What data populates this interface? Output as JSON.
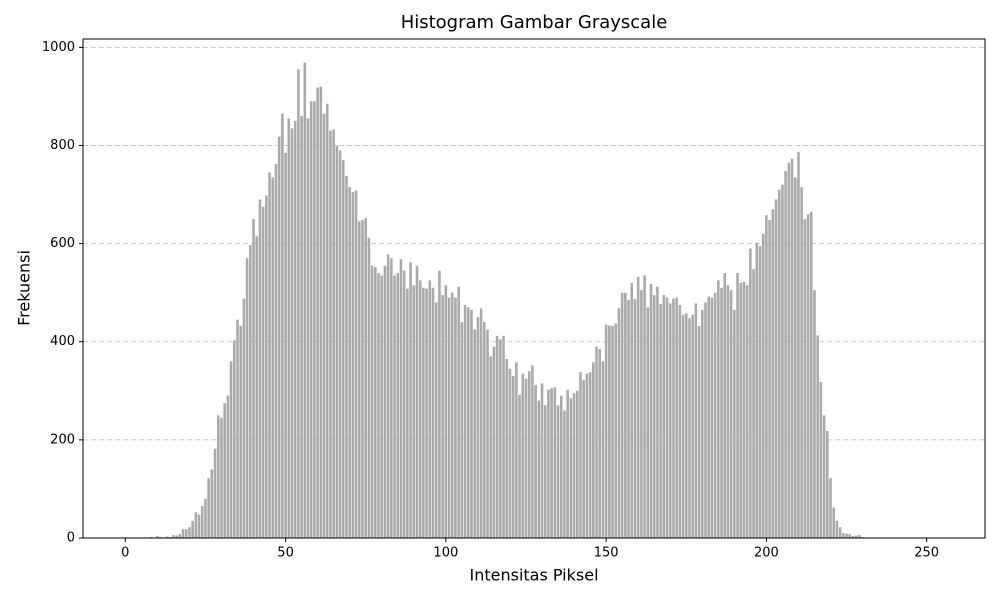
{
  "chart_data": {
    "type": "bar",
    "title": "Histogram Gambar Grayscale",
    "xlabel": "Intensitas Piksel",
    "ylabel": "Frekuensi",
    "x": [
      0,
      1,
      2,
      3,
      4,
      5,
      6,
      7,
      8,
      9,
      10,
      11,
      12,
      13,
      14,
      15,
      16,
      17,
      18,
      19,
      20,
      21,
      22,
      23,
      24,
      25,
      26,
      27,
      28,
      29,
      30,
      31,
      32,
      33,
      34,
      35,
      36,
      37,
      38,
      39,
      40,
      41,
      42,
      43,
      44,
      45,
      46,
      47,
      48,
      49,
      50,
      51,
      52,
      53,
      54,
      55,
      56,
      57,
      58,
      59,
      60,
      61,
      62,
      63,
      64,
      65,
      66,
      67,
      68,
      69,
      70,
      71,
      72,
      73,
      74,
      75,
      76,
      77,
      78,
      79,
      80,
      81,
      82,
      83,
      84,
      85,
      86,
      87,
      88,
      89,
      90,
      91,
      92,
      93,
      94,
      95,
      96,
      97,
      98,
      99,
      100,
      101,
      102,
      103,
      104,
      105,
      106,
      107,
      108,
      109,
      110,
      111,
      112,
      113,
      114,
      115,
      116,
      117,
      118,
      119,
      120,
      121,
      122,
      123,
      124,
      125,
      126,
      127,
      128,
      129,
      130,
      131,
      132,
      133,
      134,
      135,
      136,
      137,
      138,
      139,
      140,
      141,
      142,
      143,
      144,
      145,
      146,
      147,
      148,
      149,
      150,
      151,
      152,
      153,
      154,
      155,
      156,
      157,
      158,
      159,
      160,
      161,
      162,
      163,
      164,
      165,
      166,
      167,
      168,
      169,
      170,
      171,
      172,
      173,
      174,
      175,
      176,
      177,
      178,
      179,
      180,
      181,
      182,
      183,
      184,
      185,
      186,
      187,
      188,
      189,
      190,
      191,
      192,
      193,
      194,
      195,
      196,
      197,
      198,
      199,
      200,
      201,
      202,
      203,
      204,
      205,
      206,
      207,
      208,
      209,
      210,
      211,
      212,
      213,
      214,
      215,
      216,
      217,
      218,
      219,
      220,
      221,
      222,
      223,
      224,
      225,
      226,
      227,
      228,
      229,
      230,
      231,
      232,
      233,
      234,
      235,
      236,
      237,
      238,
      239,
      240,
      241,
      242,
      243,
      244,
      245,
      246,
      247,
      248,
      249,
      250,
      251,
      252,
      253,
      254,
      255
    ],
    "values": [
      0,
      0,
      0,
      0,
      0,
      0,
      0,
      0,
      2,
      0,
      4,
      2,
      1,
      3,
      2,
      6,
      5,
      8,
      18,
      18,
      22,
      35,
      52,
      48,
      65,
      80,
      122,
      140,
      182,
      250,
      245,
      275,
      290,
      360,
      403,
      445,
      432,
      488,
      570,
      597,
      650,
      615,
      690,
      675,
      698,
      745,
      735,
      762,
      818,
      865,
      785,
      855,
      835,
      850,
      955,
      860,
      969,
      855,
      890,
      890,
      918,
      920,
      865,
      885,
      830,
      833,
      800,
      790,
      770,
      738,
      715,
      705,
      708,
      645,
      648,
      652,
      612,
      555,
      552,
      540,
      535,
      555,
      578,
      570,
      535,
      540,
      568,
      545,
      508,
      562,
      515,
      555,
      525,
      510,
      508,
      525,
      510,
      480,
      545,
      495,
      515,
      490,
      500,
      490,
      512,
      440,
      475,
      470,
      465,
      425,
      450,
      468,
      440,
      425,
      370,
      390,
      412,
      405,
      412,
      365,
      345,
      330,
      358,
      292,
      335,
      325,
      340,
      352,
      312,
      280,
      315,
      270,
      302,
      305,
      307,
      270,
      290,
      260,
      302,
      285,
      295,
      300,
      338,
      322,
      335,
      338,
      358,
      390,
      385,
      360,
      435,
      433,
      432,
      437,
      468,
      500,
      500,
      485,
      520,
      487,
      532,
      505,
      535,
      470,
      518,
      495,
      512,
      477,
      495,
      490,
      478,
      488,
      490,
      475,
      455,
      458,
      448,
      455,
      478,
      432,
      465,
      480,
      492,
      490,
      500,
      525,
      510,
      540,
      515,
      505,
      465,
      540,
      520,
      522,
      515,
      590,
      548,
      602,
      595,
      620,
      658,
      648,
      670,
      690,
      710,
      720,
      748,
      765,
      773,
      735,
      787,
      715,
      650,
      660,
      665,
      505,
      413,
      318,
      250,
      218,
      122,
      62,
      35,
      22,
      10,
      9,
      8,
      4,
      5,
      6,
      2,
      0,
      0,
      0,
      0,
      0,
      0,
      0,
      0,
      0,
      0,
      0,
      0,
      0,
      0,
      0,
      0,
      0,
      0,
      0,
      0,
      0,
      0,
      0,
      0,
      0
    ],
    "color": "#a9a9a9",
    "xlim": [
      -13.2,
      268.2
    ],
    "xticks": [
      0,
      50,
      100,
      150,
      200,
      250
    ],
    "ylim": [
      0,
      1017
    ],
    "yticks": [
      0,
      200,
      400,
      600,
      800,
      1000
    ],
    "grid": true
  }
}
